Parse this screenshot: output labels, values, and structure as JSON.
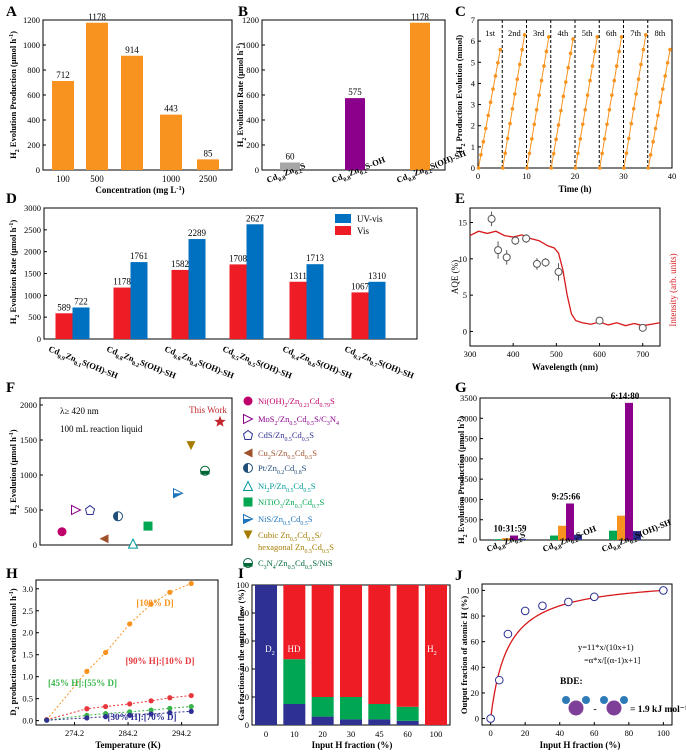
{
  "chart_data": [
    {
      "panel": "A",
      "type": "bar",
      "xlabel": "Concentration (mg L⁻¹)",
      "ylabel": "H₂ Evolution Production (μmol h⁻¹)",
      "categories": [
        "100",
        "500",
        "",
        "1000",
        "2500"
      ],
      "values": [
        712,
        1178,
        914,
        443,
        85
      ],
      "ylim": [
        0,
        1200
      ],
      "yticks": [
        "0",
        "200",
        "400",
        "600",
        "800",
        "1000",
        "1200"
      ],
      "color": "#f7931e"
    },
    {
      "panel": "B",
      "type": "bar",
      "ylabel": "H₂ Evolution Rate (μmol h⁻¹)",
      "categories": [
        "Cd0.8Zn0.2S",
        "Cd0.8Zn0.2S-OH",
        "Cd0.8Zn0.2S(OH)-SH"
      ],
      "cat_main": [
        "Cd",
        "Zn",
        "S"
      ],
      "cat_subs": [
        "0.8",
        "0.2"
      ],
      "cat_suffix": [
        "",
        "S-OH",
        "S(OH)-SH"
      ],
      "values": [
        60,
        575,
        1178
      ],
      "colors": [
        "#a6a6a6",
        "#8b008b",
        "#f7931e"
      ],
      "ylim": [
        0,
        1200
      ],
      "yticks": [
        "0",
        "200",
        "400",
        "600",
        "800",
        "1000",
        "1200"
      ]
    },
    {
      "panel": "C",
      "type": "line",
      "xlabel": "Time (h)",
      "ylabel": "H₂ Production Evolution (mmol)",
      "cycles": [
        "1st",
        "2nd",
        "3rd",
        "4th",
        "5th",
        "6th",
        "7th",
        "8th"
      ],
      "cycle_max": [
        5.6,
        6.3,
        6.2,
        6.1,
        6.2,
        6.2,
        6.3,
        5.6
      ],
      "xlim": [
        0,
        40
      ],
      "ylim": [
        0,
        7
      ],
      "xticks": [
        "0",
        "10",
        "20",
        "30",
        "40"
      ],
      "yticks": [
        "0",
        "1",
        "2",
        "3",
        "4",
        "5",
        "6",
        "7"
      ],
      "color": "#f7931e"
    },
    {
      "panel": "D",
      "type": "bar",
      "ylabel": "H₂ Evolution Rate (μmol h⁻¹)",
      "categories": [
        "Cd0.9Zn0.1S(OH)-SH",
        "Cd0.8Zn0.2S(OH)-SH",
        "Cd0.6Zn0.4S(OH)-SH",
        "Cd0.5Zn0.5S(OH)-SH",
        "Cd0.4Zn0.6S(OH)-SH",
        "Cd0.3Zn0.7S(OH)-SH"
      ],
      "cat_x": [
        "0.9",
        "0.8",
        "0.6",
        "0.5",
        "0.4",
        "0.3"
      ],
      "cat_y": [
        "0.1",
        "0.2",
        "0.4",
        "0.5",
        "0.6",
        "0.7"
      ],
      "series": [
        {
          "name": "Vis",
          "values": [
            589,
            1178,
            1582,
            1708,
            1311,
            1067
          ],
          "color": "#ee1c25"
        },
        {
          "name": "UV-vis",
          "values": [
            722,
            1761,
            2289,
            2627,
            1713,
            1310
          ],
          "color": "#0070c0"
        }
      ],
      "ylim": [
        0,
        3000
      ],
      "yticks": [
        "0",
        "500",
        "1000",
        "1500",
        "2000",
        "2500",
        "3000"
      ]
    },
    {
      "panel": "E",
      "type": "scatter",
      "xlabel": "Wavelength (nm)",
      "ylabel": "AQE (%)",
      "ylabel_right": "Intensity (arb. units)",
      "x": [
        350,
        365,
        385,
        405,
        430,
        455,
        475,
        505,
        600,
        700
      ],
      "y": [
        15.5,
        11.2,
        10.2,
        12.5,
        12.8,
        9.3,
        9.5,
        8.2,
        1.5,
        0.5
      ],
      "xlim": [
        300,
        740
      ],
      "ylim": [
        -2,
        17
      ],
      "xticks": [
        "300",
        "400",
        "500",
        "600",
        "700"
      ],
      "yticks": [
        "0",
        "5",
        "10",
        "15"
      ]
    },
    {
      "panel": "F",
      "type": "scatter",
      "ylabel": "H₂ Evolution (μmol h⁻¹)",
      "notes": [
        "λ≥ 420 nm",
        "100 mL reaction liquid"
      ],
      "highlight": "This Work",
      "highlight_value": 1760,
      "yticks": [
        "0",
        "500",
        "1000",
        "1500",
        "2000"
      ],
      "ylim": [
        0,
        2100
      ],
      "legend": [
        {
          "label": "Ni(OH)2/Zn0.21Cd0.79S",
          "value": 190,
          "color": "#c0006a",
          "shape": "circle"
        },
        {
          "label": "MoS2/Zn0.5Cd0.5S/C3N4",
          "value": 500,
          "color": "#8b008b",
          "shape": "tri-right-open"
        },
        {
          "label": "CdS/Zn0.5Cd0.5S",
          "value": 500,
          "color": "#2e3192",
          "shape": "pentagon-open"
        },
        {
          "label": "Cu2S/Zn0.5Cd0.5S",
          "value": 90,
          "color": "#a0522d",
          "shape": "tri-left"
        },
        {
          "label": "Pt/Zn0.2Cd0.8S",
          "value": 410,
          "color": "#1f4e79",
          "shape": "half-circle"
        },
        {
          "label": "Ni2P/Zn0.5Cd0.5S",
          "value": 20,
          "color": "#009999",
          "shape": "tri-up-open"
        },
        {
          "label": "NiTiO3/Zn0.3Cd0.7S",
          "value": 270,
          "color": "#00a651",
          "shape": "square"
        },
        {
          "label": "NiS/Zn0.5Cd0.5S",
          "value": 740,
          "color": "#1c75bc",
          "shape": "tri-right-half"
        },
        {
          "label": "Cubic Zn0.5Cd0.5S/ hexagonal Zn0.5Cd0.5S",
          "value": 1420,
          "color": "#a67c00",
          "shape": "tri-down"
        },
        {
          "label": "C3N4/Zn0.5Cd0.5S/NiS",
          "value": 1060,
          "color": "#006837",
          "shape": "hex-half"
        }
      ]
    },
    {
      "panel": "G",
      "type": "bar",
      "ylabel": "H₂ Evolution Production (μmol h⁻¹)",
      "groups": [
        {
          "label": "Cd0.8Zn0.2S",
          "ratio": "10:31:59",
          "values": [
            20,
            45,
            110,
            30
          ]
        },
        {
          "label": "Cd0.8Zn0.2S-OH",
          "ratio": "9:25:66",
          "values": [
            110,
            350,
            900,
            130
          ]
        },
        {
          "label": "Cd0.8Zn0.2S(OH)-SH",
          "ratio": "6:14:80",
          "values": [
            230,
            600,
            3380,
            220
          ]
        }
      ],
      "series_colors": [
        "#00a651",
        "#f7931e",
        "#8b008b",
        "#2e3192"
      ],
      "ylim": [
        0,
        3500
      ],
      "yticks": [
        "0",
        "500",
        "1000",
        "1500",
        "2000",
        "2500",
        "3000",
        "3500"
      ]
    },
    {
      "panel": "H",
      "type": "line",
      "xlabel": "Temperature (K)",
      "ylabel": "D₂ production evolution (mmol h⁻¹)",
      "xlim": [
        267,
        301
      ],
      "ylim": [
        -0.1,
        3.2
      ],
      "xticks": [
        "274.2",
        "284.2",
        "294.2"
      ],
      "yticks": [
        "0.0",
        "0.5",
        "1.0",
        "1.5",
        "2.0",
        "2.5",
        "3.0"
      ],
      "series": [
        {
          "name": "[100% D]",
          "color": "#f7931e",
          "x": [
            269,
            276.5,
            280,
            284.5,
            288.5,
            292,
            296
          ],
          "y": [
            0.02,
            1.12,
            1.55,
            2.2,
            2.65,
            2.92,
            3.12
          ]
        },
        {
          "name": "[90% H]:[10% D]",
          "color": "#e8383d",
          "x": [
            269,
            276.5,
            280,
            284.5,
            288.5,
            292,
            296
          ],
          "y": [
            0.02,
            0.27,
            0.32,
            0.38,
            0.45,
            0.52,
            0.57
          ]
        },
        {
          "name": "[45% H]:[55% D]",
          "color": "#39b54a",
          "x": [
            269,
            276.5,
            280,
            284.5,
            288.5,
            292,
            296
          ],
          "y": [
            0.01,
            0.12,
            0.16,
            0.2,
            0.24,
            0.28,
            0.32
          ]
        },
        {
          "name": "[30% H]:[70% D]",
          "color": "#2e3192",
          "x": [
            269,
            276.5,
            280,
            284.5,
            288.5,
            292,
            296
          ],
          "y": [
            0.01,
            0.06,
            0.09,
            0.12,
            0.15,
            0.18,
            0.21
          ]
        }
      ]
    },
    {
      "panel": "I",
      "type": "bar",
      "xlabel": "Input H fraction (%)",
      "ylabel": "Gas fractions in the output flow (%)",
      "categories": [
        "0",
        "10",
        "20",
        "30",
        "45",
        "60",
        "100"
      ],
      "series": [
        {
          "name": "D₂",
          "values": [
            100,
            15,
            6,
            4,
            4,
            3,
            0
          ],
          "color": "#2e3192"
        },
        {
          "name": "HD",
          "values": [
            0,
            32,
            14,
            16,
            11,
            10,
            0
          ],
          "color": "#00a651"
        },
        {
          "name": "H₂",
          "values": [
            0,
            53,
            80,
            80,
            85,
            87,
            100
          ],
          "color": "#ee1c25"
        }
      ],
      "ylim": [
        0,
        100
      ],
      "yticks": [
        "0",
        "20",
        "40",
        "60",
        "80",
        "100"
      ]
    },
    {
      "panel": "J",
      "type": "scatter",
      "xlabel": "Input H fraction (%)",
      "ylabel": "Output fraction of atomic H (%)",
      "x": [
        0,
        5,
        10,
        20,
        30,
        45,
        60,
        100
      ],
      "y": [
        0,
        30,
        66,
        84,
        88,
        91,
        95,
        100
      ],
      "fit_alpha": 11,
      "xlim": [
        -5,
        105
      ],
      "ylim": [
        -5,
        105
      ],
      "xticks": [
        "0",
        "20",
        "40",
        "60",
        "80",
        "100"
      ],
      "yticks": [
        "0",
        "20",
        "40",
        "60",
        "80",
        "100"
      ],
      "eq1": "y=11*x/(10x+1)",
      "eq2": "=α*x/[(α-1)x+1]",
      "bde_label": "BDE:",
      "bde_value": "= 1.9 kJ mol⁻¹",
      "dash": "-"
    }
  ],
  "labels": {
    "A": "A",
    "B": "B",
    "C": "C",
    "D": "D",
    "E": "E",
    "F": "F",
    "G": "G",
    "H": "H",
    "I": "I",
    "J": "J"
  }
}
